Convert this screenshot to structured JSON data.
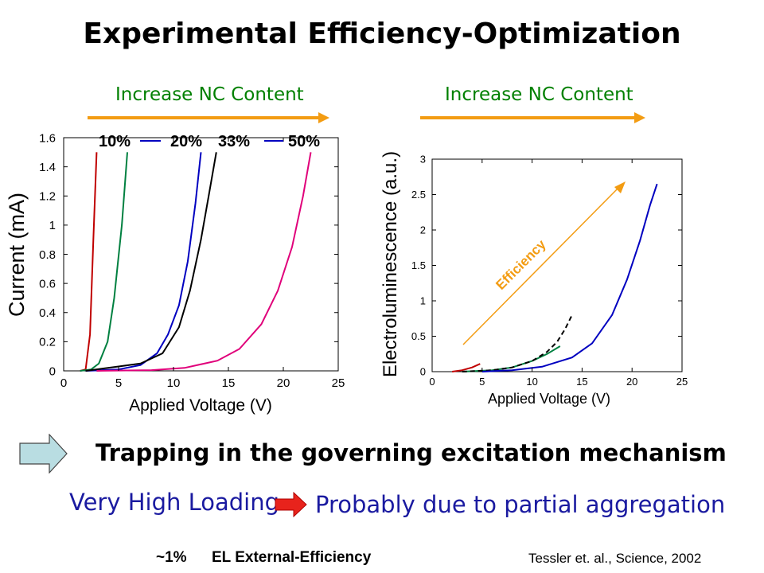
{
  "slide": {
    "title": "Experimental Efficiency-Optimization",
    "increase_left": "Increase NC Content",
    "increase_right": "Increase NC Content",
    "mechanism": "Trapping in the governing excitation mechanism",
    "loading": "Very High Loading",
    "aggregation": "Probably due to partial aggregation",
    "efficiency_pct": "~1%",
    "efficiency_label": "EL External-Efficiency",
    "reference": "Tessler et. al., Science, 2002",
    "accent_orange": "#f39c12",
    "arrow_red": "#e8231c"
  },
  "chart_data": [
    {
      "type": "line",
      "xlabel": "Applied Voltage (V)",
      "ylabel": "Current (mA)",
      "xlim": [
        0,
        25
      ],
      "ylim": [
        0,
        1.6
      ],
      "xticks": [
        0,
        5,
        10,
        15,
        20,
        25
      ],
      "yticks": [
        0,
        0.2,
        0.4,
        0.6,
        0.8,
        1,
        1.2,
        1.4,
        1.6
      ],
      "legend": [
        "10%",
        "20%",
        "33%",
        "50%"
      ],
      "series": [
        {
          "name": "10%",
          "color": "#c00000",
          "x": [
            1.5,
            2.0,
            2.4,
            2.7,
            3.0
          ],
          "y": [
            0,
            0.01,
            0.25,
            0.9,
            1.5
          ]
        },
        {
          "name": "20%",
          "color": "#008040",
          "x": [
            1.5,
            2.5,
            3.2,
            4.0,
            4.6,
            5.3,
            5.8
          ],
          "y": [
            0,
            0.01,
            0.05,
            0.2,
            0.5,
            1.0,
            1.5
          ]
        },
        {
          "name": "33%",
          "color": "#0000c0",
          "x": [
            2.0,
            5.0,
            7.0,
            8.5,
            9.5,
            10.5,
            11.3,
            12.0,
            12.5
          ],
          "y": [
            0,
            0.01,
            0.04,
            0.12,
            0.25,
            0.45,
            0.75,
            1.15,
            1.5
          ]
        },
        {
          "name": "50%",
          "color": "#000000",
          "x": [
            2.0,
            5.0,
            7.0,
            9.0,
            10.5,
            11.5,
            12.5,
            13.2,
            13.9
          ],
          "y": [
            0,
            0.03,
            0.05,
            0.12,
            0.3,
            0.55,
            0.9,
            1.2,
            1.5
          ]
        },
        {
          "name": "",
          "color": "#e0007a",
          "x": [
            3.0,
            8.0,
            11.0,
            14.0,
            16.0,
            18.0,
            19.5,
            20.8,
            21.8,
            22.5
          ],
          "y": [
            0,
            0.005,
            0.02,
            0.07,
            0.15,
            0.32,
            0.55,
            0.85,
            1.2,
            1.5
          ]
        }
      ]
    },
    {
      "type": "line",
      "xlabel": "Applied Voltage (V)",
      "ylabel": "Electroluminescence (a.u.)",
      "xlim": [
        0,
        25
      ],
      "ylim": [
        0,
        3
      ],
      "xticks": [
        0,
        5,
        10,
        15,
        20,
        25
      ],
      "yticks": [
        0,
        0.5,
        1,
        1.5,
        2,
        2.5,
        3
      ],
      "annotation": "Efficiency",
      "series": [
        {
          "name": "",
          "color": "#c00000",
          "x": [
            2.0,
            3.0,
            4.0,
            4.8
          ],
          "y": [
            0,
            0.02,
            0.06,
            0.11
          ]
        },
        {
          "name": "",
          "color": "#008040",
          "x": [
            3.0,
            6.0,
            8.0,
            10.0,
            11.5,
            12.8
          ],
          "y": [
            0,
            0.02,
            0.06,
            0.15,
            0.25,
            0.36
          ]
        },
        {
          "name": "",
          "color": "#000000",
          "x": [
            3.0,
            6.0,
            8.0,
            10.0,
            11.5,
            12.5,
            13.3,
            14.0
          ],
          "y": [
            0,
            0.02,
            0.06,
            0.15,
            0.28,
            0.42,
            0.6,
            0.8
          ]
        },
        {
          "name": "",
          "color": "#0000c0",
          "x": [
            5.0,
            8.0,
            11.0,
            14.0,
            16.0,
            18.0,
            19.5,
            20.8,
            21.8,
            22.5
          ],
          "y": [
            0,
            0.02,
            0.07,
            0.2,
            0.4,
            0.8,
            1.3,
            1.85,
            2.35,
            2.65
          ]
        }
      ]
    }
  ]
}
